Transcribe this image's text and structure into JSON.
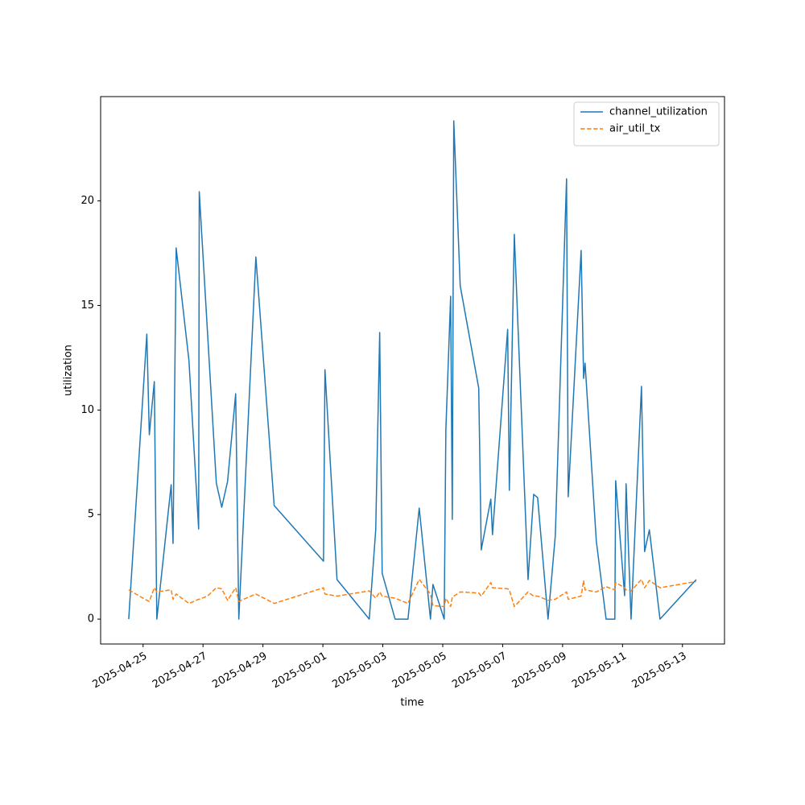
{
  "chart_data": {
    "type": "line",
    "x_label": "time",
    "y_label": "utilization",
    "x": [
      "2025-04-24T12:30",
      "2025-04-25T03:00",
      "2025-04-25T05:00",
      "2025-04-25T09:00",
      "2025-04-25T11:00",
      "2025-04-25T22:30",
      "2025-04-26T00:00",
      "2025-04-26T02:30",
      "2025-04-26T12:45",
      "2025-04-26T20:30",
      "2025-04-26T21:00",
      "2025-04-27T03:30",
      "2025-04-27T10:40",
      "2025-04-27T15:00",
      "2025-04-27T19:40",
      "2025-04-28T02:10",
      "2025-04-28T04:40",
      "2025-04-28T18:20",
      "2025-04-29T09:00",
      "2025-05-01T00:30",
      "2025-05-01T01:40",
      "2025-05-01T11:20",
      "2025-05-02T13:10",
      "2025-05-02T18:20",
      "2025-05-02T21:30",
      "2025-05-02T23:30",
      "2025-05-03T09:50",
      "2025-05-03T20:10",
      "2025-05-04T05:10",
      "2025-05-04T14:10",
      "2025-05-04T16:10",
      "2025-05-05T01:10",
      "2025-05-05T02:30",
      "2025-05-05T06:20",
      "2025-05-05T07:40",
      "2025-05-05T08:50",
      "2025-05-05T14:00",
      "2025-05-06T04:50",
      "2025-05-06T06:50",
      "2025-05-06T14:30",
      "2025-05-06T15:50",
      "2025-05-07T04:00",
      "2025-05-07T05:20",
      "2025-05-07T09:20",
      "2025-05-07T20:20",
      "2025-05-08T00:50",
      "2025-05-08T04:00",
      "2025-05-08T12:20",
      "2025-05-08T18:10",
      "2025-05-09T03:10",
      "2025-05-09T04:30",
      "2025-05-09T14:50",
      "2025-05-09T16:50",
      "2025-05-09T18:00",
      "2025-05-10T03:00",
      "2025-05-10T10:50",
      "2025-05-10T17:50",
      "2025-05-10T18:30",
      "2025-05-11T01:40",
      "2025-05-11T02:50",
      "2025-05-11T06:50",
      "2025-05-11T15:10",
      "2025-05-11T17:40",
      "2025-05-11T21:30",
      "2025-05-12T06:00",
      "2025-05-13T11:00"
    ],
    "series": [
      {
        "name": "channel_utilization",
        "color": "#1f77b4",
        "linestyle": "solid",
        "values": [
          0,
          13.63,
          8.82,
          11.36,
          0,
          6.43,
          3.62,
          17.75,
          12.36,
          4.31,
          20.44,
          13.82,
          6.51,
          5.35,
          6.58,
          10.78,
          0,
          17.32,
          5.43,
          2.77,
          11.93,
          1.89,
          0,
          4.27,
          13.71,
          2.19,
          0,
          0,
          5.31,
          0,
          1.66,
          0,
          9.05,
          15.44,
          4.77,
          23.83,
          15.94,
          11.05,
          3.31,
          5.74,
          4.04,
          13.86,
          6.16,
          18.4,
          1.89,
          5.97,
          5.81,
          0,
          4.0,
          21.06,
          5.85,
          17.63,
          11.51,
          12.24,
          3.73,
          0,
          0,
          6.62,
          1.12,
          6.47,
          0,
          11.13,
          3.23,
          4.27,
          0,
          1.89
        ]
      },
      {
        "name": "air_util_tx",
        "color": "#ff7f0e",
        "linestyle": "dashed",
        "values": [
          1.4,
          0.9,
          0.85,
          1.5,
          1.3,
          1.4,
          0.95,
          1.2,
          0.75,
          0.95,
          0.95,
          1.1,
          1.5,
          1.45,
          0.9,
          1.5,
          0.85,
          1.2,
          0.75,
          1.5,
          1.2,
          1.1,
          1.35,
          1.0,
          1.3,
          1.1,
          1.0,
          0.75,
          1.9,
          1.2,
          0.65,
          0.6,
          1.0,
          0.6,
          1.05,
          1.1,
          1.3,
          1.25,
          1.1,
          1.75,
          1.5,
          1.45,
          1.4,
          0.6,
          1.3,
          1.1,
          1.1,
          0.9,
          0.95,
          1.3,
          0.95,
          1.1,
          1.85,
          1.4,
          1.3,
          1.55,
          1.4,
          1.75,
          1.5,
          1.4,
          1.35,
          1.9,
          1.5,
          1.85,
          1.5,
          1.8
        ]
      }
    ],
    "xlim": [
      "2025-04-23T14:00",
      "2025-05-14T09:40"
    ],
    "xticks": [
      "2025-04-25",
      "2025-04-27",
      "2025-04-29",
      "2025-05-01",
      "2025-05-03",
      "2025-05-05",
      "2025-05-07",
      "2025-05-09",
      "2025-05-11",
      "2025-05-13"
    ],
    "ylim": [
      -1.19,
      24.99
    ],
    "yticks": [
      0,
      5,
      10,
      15,
      20
    ],
    "legend": "upper right"
  }
}
